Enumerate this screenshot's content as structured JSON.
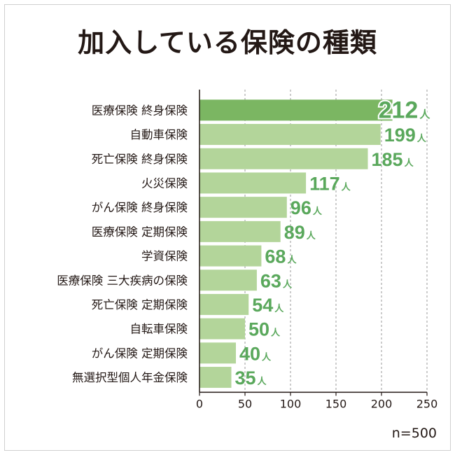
{
  "title": "加入している保険の種類",
  "note": "n=500",
  "colors": {
    "highlight": "#7bb662",
    "bar": "#b3d59a",
    "label": "#5aa85c",
    "text": "#231815"
  },
  "chart_data": {
    "type": "bar",
    "orientation": "horizontal",
    "title": "加入している保険の種類",
    "categories": [
      "医療保険 終身保険",
      "自動車保険",
      "死亡保険 終身保険",
      "火災保険",
      "がん保険 終身保険",
      "医療保険 定期保険",
      "学資保険",
      "医療保険 三大疾病の保険",
      "死亡保険 定期保険",
      "自転車保険",
      "がん保険 定期保険",
      "無選択型個人年金保険"
    ],
    "values": [
      212,
      199,
      185,
      117,
      96,
      89,
      68,
      63,
      54,
      50,
      40,
      35
    ],
    "value_unit": "人",
    "xlim": [
      0,
      250
    ],
    "xticks": [
      "0",
      "50",
      "100",
      "150",
      "200",
      "250"
    ],
    "grid": "dashed vertical",
    "highlight_index": 0
  }
}
